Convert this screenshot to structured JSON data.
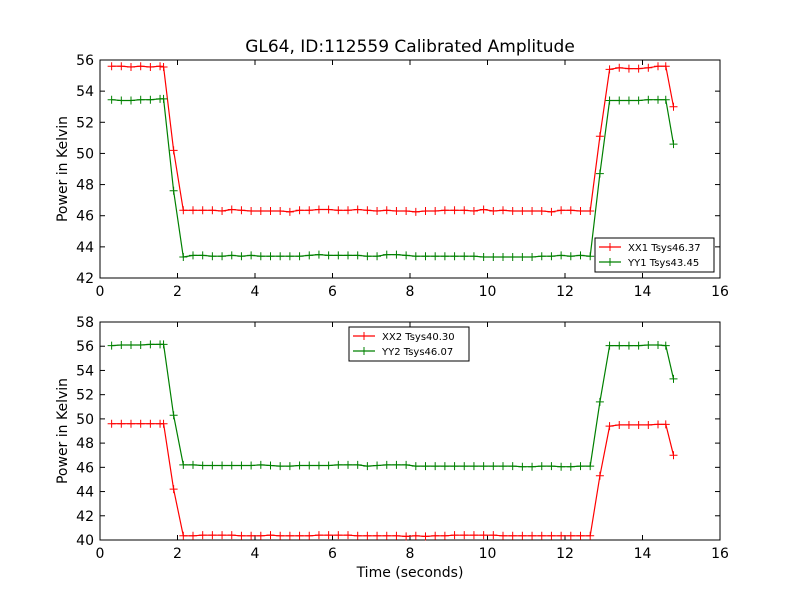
{
  "figure_title": "GL64, ID:112559 Calibrated Amplitude",
  "chart_data": [
    {
      "type": "line",
      "title": "GL64, ID:112559 Calibrated Amplitude",
      "xlabel": "",
      "ylabel": "Power in Kelvin",
      "xlim": [
        0,
        16
      ],
      "ylim": [
        42,
        56
      ],
      "xticks": [
        "0",
        "2",
        "4",
        "6",
        "8",
        "10",
        "12",
        "14",
        "16"
      ],
      "yticks": [
        "42",
        "44",
        "46",
        "48",
        "50",
        "52",
        "54",
        "56"
      ],
      "legend_position": "lower-right",
      "grid": false,
      "x": [
        0.3,
        0.55,
        0.8,
        1.05,
        1.3,
        1.55,
        1.64,
        1.9,
        2.15,
        2.4,
        2.65,
        2.9,
        3.15,
        3.4,
        3.65,
        3.9,
        4.15,
        4.4,
        4.65,
        4.9,
        5.15,
        5.4,
        5.65,
        5.9,
        6.15,
        6.4,
        6.65,
        6.9,
        7.15,
        7.4,
        7.65,
        7.9,
        8.15,
        8.4,
        8.65,
        8.9,
        9.15,
        9.4,
        9.65,
        9.9,
        10.15,
        10.4,
        10.65,
        10.9,
        11.15,
        11.4,
        11.65,
        11.9,
        12.15,
        12.4,
        12.65,
        12.9,
        13.15,
        13.4,
        13.65,
        13.9,
        14.15,
        14.4,
        14.6,
        14.8
      ],
      "series": [
        {
          "name": "XX1 Tsys46.37",
          "color": "#ff0000",
          "values": [
            55.6,
            55.6,
            55.55,
            55.6,
            55.55,
            55.6,
            55.55,
            50.2,
            46.35,
            46.35,
            46.35,
            46.35,
            46.3,
            46.4,
            46.35,
            46.3,
            46.3,
            46.3,
            46.3,
            46.25,
            46.35,
            46.35,
            46.4,
            46.4,
            46.35,
            46.35,
            46.4,
            46.35,
            46.3,
            46.35,
            46.3,
            46.3,
            46.25,
            46.3,
            46.3,
            46.35,
            46.35,
            46.35,
            46.3,
            46.4,
            46.3,
            46.35,
            46.3,
            46.3,
            46.3,
            46.3,
            46.25,
            46.35,
            46.35,
            46.3,
            46.3,
            51.1,
            55.4,
            55.5,
            55.45,
            55.45,
            55.5,
            55.6,
            55.6,
            53.0
          ]
        },
        {
          "name": "YY1 Tsys43.45",
          "color": "#008000",
          "values": [
            53.45,
            53.4,
            53.4,
            53.45,
            53.45,
            53.5,
            53.5,
            47.6,
            43.35,
            43.45,
            43.45,
            43.4,
            43.4,
            43.45,
            43.4,
            43.45,
            43.4,
            43.4,
            43.4,
            43.4,
            43.4,
            43.45,
            43.5,
            43.45,
            43.45,
            43.45,
            43.45,
            43.4,
            43.4,
            43.5,
            43.5,
            43.45,
            43.4,
            43.4,
            43.4,
            43.4,
            43.4,
            43.4,
            43.4,
            43.35,
            43.35,
            43.35,
            43.35,
            43.35,
            43.35,
            43.4,
            43.4,
            43.45,
            43.4,
            43.45,
            43.4,
            48.7,
            53.4,
            53.4,
            53.4,
            53.4,
            53.45,
            53.45,
            53.45,
            50.6
          ]
        }
      ]
    },
    {
      "type": "line",
      "title": "",
      "xlabel": "Time (seconds)",
      "ylabel": "Power in Kelvin",
      "xlim": [
        0,
        16
      ],
      "ylim": [
        40,
        58
      ],
      "xticks": [
        "0",
        "2",
        "4",
        "6",
        "8",
        "10",
        "12",
        "14",
        "16"
      ],
      "yticks": [
        "40",
        "42",
        "44",
        "46",
        "48",
        "50",
        "52",
        "54",
        "56",
        "58"
      ],
      "legend_position": "upper-center",
      "grid": false,
      "x": [
        0.3,
        0.55,
        0.8,
        1.05,
        1.3,
        1.55,
        1.64,
        1.9,
        2.15,
        2.4,
        2.65,
        2.9,
        3.15,
        3.4,
        3.65,
        3.9,
        4.15,
        4.4,
        4.65,
        4.9,
        5.15,
        5.4,
        5.65,
        5.9,
        6.15,
        6.4,
        6.65,
        6.9,
        7.15,
        7.4,
        7.65,
        7.9,
        8.15,
        8.4,
        8.65,
        8.9,
        9.15,
        9.4,
        9.65,
        9.9,
        10.15,
        10.4,
        10.65,
        10.9,
        11.15,
        11.4,
        11.65,
        11.9,
        12.15,
        12.4,
        12.65,
        12.9,
        13.15,
        13.4,
        13.65,
        13.9,
        14.15,
        14.4,
        14.6,
        14.8
      ],
      "series": [
        {
          "name": "XX2 Tsys40.30",
          "color": "#ff0000",
          "values": [
            49.6,
            49.6,
            49.6,
            49.6,
            49.6,
            49.6,
            49.6,
            44.2,
            40.35,
            40.35,
            40.4,
            40.4,
            40.4,
            40.4,
            40.35,
            40.35,
            40.35,
            40.4,
            40.35,
            40.35,
            40.35,
            40.35,
            40.4,
            40.4,
            40.4,
            40.4,
            40.35,
            40.35,
            40.35,
            40.35,
            40.35,
            40.3,
            40.35,
            40.3,
            40.35,
            40.35,
            40.4,
            40.4,
            40.4,
            40.4,
            40.4,
            40.35,
            40.35,
            40.35,
            40.35,
            40.35,
            40.35,
            40.35,
            40.35,
            40.35,
            40.35,
            45.3,
            49.4,
            49.5,
            49.5,
            49.5,
            49.5,
            49.55,
            49.55,
            47.0
          ]
        },
        {
          "name": "YY2 Tsys46.07",
          "color": "#008000",
          "values": [
            56.05,
            56.1,
            56.1,
            56.1,
            56.15,
            56.15,
            56.15,
            50.3,
            46.2,
            46.2,
            46.15,
            46.15,
            46.15,
            46.15,
            46.15,
            46.15,
            46.2,
            46.15,
            46.1,
            46.1,
            46.15,
            46.15,
            46.15,
            46.15,
            46.2,
            46.2,
            46.2,
            46.1,
            46.15,
            46.2,
            46.2,
            46.2,
            46.1,
            46.1,
            46.1,
            46.1,
            46.1,
            46.1,
            46.1,
            46.1,
            46.1,
            46.1,
            46.1,
            46.05,
            46.05,
            46.1,
            46.1,
            46.05,
            46.05,
            46.1,
            46.1,
            51.4,
            56.05,
            56.05,
            56.05,
            56.05,
            56.1,
            56.1,
            56.05,
            53.3
          ]
        }
      ]
    }
  ]
}
